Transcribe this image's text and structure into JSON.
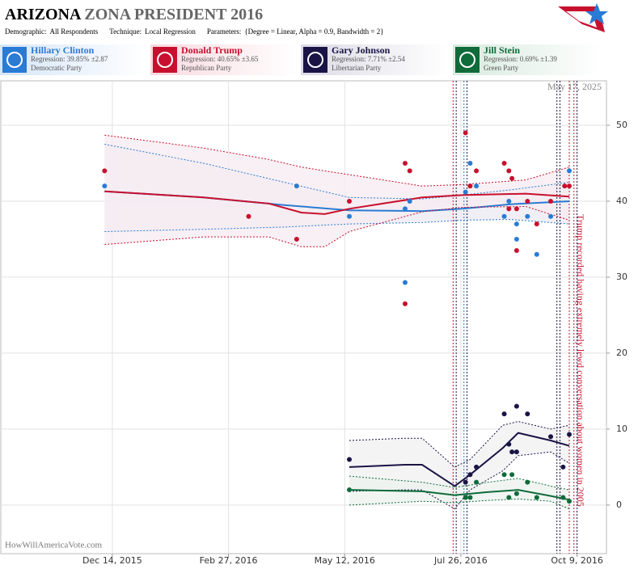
{
  "header": {
    "title_bold": "ARIZONA",
    "title_rest": "ZONA PRESIDENT 2016",
    "params": [
      {
        "label": "Demographic:",
        "value": "All Respondents"
      },
      {
        "label": "Technique:",
        "value": "Local Regression"
      },
      {
        "label": "Parameters:",
        "value": "{Degree = Linear, Alpha = 0.9, Bandwidth = 2}"
      }
    ]
  },
  "chart_data": {
    "type": "scatter",
    "date_label": "May 17, 2025",
    "annotation": "Trump recorded having extremely lewd conversation about women in 2005",
    "watermark": "HowWillAmericaVote.com",
    "xlim": [
      "2015-10-03",
      "2016-10-28"
    ],
    "xticks": [
      {
        "value": "2015-12-14",
        "label": "Dec 14, 2015"
      },
      {
        "value": "2016-02-27",
        "label": "Feb 27, 2016"
      },
      {
        "value": "2016-05-12",
        "label": "May 12, 2016"
      },
      {
        "value": "2016-07-26",
        "label": "Jul 26, 2016"
      },
      {
        "value": "2016-10-09",
        "label": "Oct 9, 2016"
      }
    ],
    "ylim": [
      -6.4,
      55.85
    ],
    "yticks": [
      0,
      10,
      20,
      30,
      40,
      50
    ],
    "grid": true,
    "event_lines": [
      {
        "date": "2016-07-21",
        "color": "#c8102e"
      },
      {
        "date": "2016-07-23",
        "color": "#1a1446"
      },
      {
        "date": "2016-07-28",
        "color": "#2a7bd4"
      },
      {
        "date": "2016-07-30",
        "color": "#1a1446"
      },
      {
        "date": "2016-09-26",
        "color": "#1a1446"
      },
      {
        "date": "2016-09-28",
        "color": "#1a1446"
      },
      {
        "date": "2016-10-04",
        "color": "#c8102e"
      },
      {
        "date": "2016-10-07",
        "color": "#c8102e"
      },
      {
        "date": "2016-10-09",
        "color": "#1a1446"
      }
    ],
    "annotation_date": "2016-10-07",
    "series": [
      {
        "name": "Hillary Clinton",
        "color": "#2a7bd4",
        "band": "#ecebf4",
        "regression": "Regression: 39.85% ±2.87",
        "party": "Democratic Party",
        "x": [
          "2015-12-09",
          "2016-04-11",
          "2016-05-15",
          "2016-06-20",
          "2016-06-20",
          "2016-06-23",
          "2016-07-29",
          "2016-08-01",
          "2016-08-05",
          "2016-08-23",
          "2016-08-26",
          "2016-08-31",
          "2016-08-31",
          "2016-09-07",
          "2016-09-13",
          "2016-09-22",
          "2016-10-04"
        ],
        "values": [
          42,
          42,
          38,
          39,
          29.3,
          40,
          41.2,
          45,
          42,
          38,
          40,
          37,
          35,
          38,
          33,
          38,
          44
        ],
        "trend": {
          "x": [
            "2015-12-09",
            "2016-02-11",
            "2016-04-03",
            "2016-05-15",
            "2016-07-01",
            "2016-07-27",
            "2016-08-27",
            "2016-10-04"
          ],
          "values": [
            41.3,
            40.5,
            39.5,
            38.8,
            38.7,
            39,
            39.6,
            40
          ],
          "upper": [
            47.5,
            45,
            42.5,
            40.5,
            40.3,
            40.8,
            41.5,
            42.5
          ],
          "lower": [
            36,
            36.3,
            36.6,
            37,
            37.2,
            37.5,
            37.6,
            37
          ]
        }
      },
      {
        "name": "Donald Trump",
        "color": "#c8102e",
        "band": "#f6ecf1",
        "regression": "Regression: 40.65% ±3.65",
        "party": "Republican Party",
        "x": [
          "2015-12-09",
          "2016-03-11",
          "2016-04-11",
          "2016-05-15",
          "2016-06-20",
          "2016-06-23",
          "2016-06-20",
          "2016-07-29",
          "2016-08-01",
          "2016-08-05",
          "2016-08-23",
          "2016-08-26",
          "2016-08-28",
          "2016-08-26",
          "2016-08-31",
          "2016-08-31",
          "2016-09-07",
          "2016-09-13",
          "2016-09-22",
          "2016-10-01",
          "2016-10-04"
        ],
        "values": [
          44,
          38,
          35,
          40,
          45,
          44,
          26.5,
          49,
          42,
          44,
          45,
          44,
          43,
          39,
          39,
          33.5,
          40,
          37,
          40,
          42,
          42
        ],
        "trend": {
          "x": [
            "2015-12-09",
            "2016-02-11",
            "2016-03-24",
            "2016-04-14",
            "2016-04-29",
            "2016-05-15",
            "2016-07-01",
            "2016-07-27",
            "2016-09-06",
            "2016-10-04"
          ],
          "values": [
            41.3,
            40.5,
            39.7,
            38.5,
            38.3,
            39,
            40.5,
            40.8,
            41,
            40.6
          ],
          "upper": [
            48.7,
            47,
            45.5,
            44.5,
            44,
            43.5,
            42,
            42.2,
            42.8,
            44.5
          ],
          "lower": [
            34.3,
            35.3,
            35.3,
            34,
            34,
            36,
            38.6,
            39.2,
            39.3,
            37.5
          ]
        }
      },
      {
        "name": "Gary Johnson",
        "color": "#1a1446",
        "band": "#f1f1f3",
        "regression": "Regression: 7.71% ±2.54",
        "party": "Libertarian Party",
        "x": [
          "2016-05-15",
          "2016-07-29",
          "2016-08-01",
          "2016-08-05",
          "2016-08-23",
          "2016-08-26",
          "2016-08-28",
          "2016-08-31",
          "2016-08-31",
          "2016-09-07",
          "2016-09-22",
          "2016-09-30",
          "2016-10-04"
        ],
        "values": [
          6,
          3,
          4,
          5,
          12,
          8,
          7,
          13,
          7,
          12,
          9,
          5,
          9.3
        ],
        "trend": {
          "x": [
            "2016-05-15",
            "2016-06-20",
            "2016-07-01",
            "2016-07-22",
            "2016-08-01",
            "2016-08-22",
            "2016-09-01",
            "2016-09-22",
            "2016-10-04"
          ],
          "values": [
            5,
            5.3,
            5.3,
            2.5,
            4,
            7.5,
            9.5,
            8.5,
            7.8
          ],
          "upper": [
            8.5,
            8.8,
            8.8,
            5,
            6,
            10.5,
            11,
            10,
            10.5
          ],
          "lower": [
            1.8,
            2,
            2,
            -0.5,
            2,
            4.5,
            6.5,
            7,
            5.5
          ]
        }
      },
      {
        "name": "Jill Stein",
        "color": "#0f6b3a",
        "band": "#eef3ef",
        "regression": "Regression: 0.69% ±1.39",
        "party": "Green Party",
        "x": [
          "2016-05-15",
          "2016-07-29",
          "2016-08-01",
          "2016-08-05",
          "2016-08-23",
          "2016-08-26",
          "2016-08-28",
          "2016-08-31",
          "2016-09-07",
          "2016-09-13",
          "2016-09-30",
          "2016-10-04"
        ],
        "values": [
          2,
          1,
          1,
          3,
          4,
          1,
          4,
          1.5,
          3,
          1,
          1,
          0.5
        ],
        "trend": {
          "x": [
            "2016-05-15",
            "2016-07-01",
            "2016-07-22",
            "2016-08-12",
            "2016-09-01",
            "2016-09-22",
            "2016-10-04"
          ],
          "values": [
            2,
            1.8,
            1.3,
            1.7,
            2,
            1.2,
            0.7
          ],
          "upper": [
            3.8,
            3,
            2.3,
            3,
            3.5,
            2.5,
            2
          ],
          "lower": [
            0,
            0.5,
            0.3,
            0.6,
            0.8,
            0.5,
            -0.5
          ]
        }
      }
    ]
  }
}
